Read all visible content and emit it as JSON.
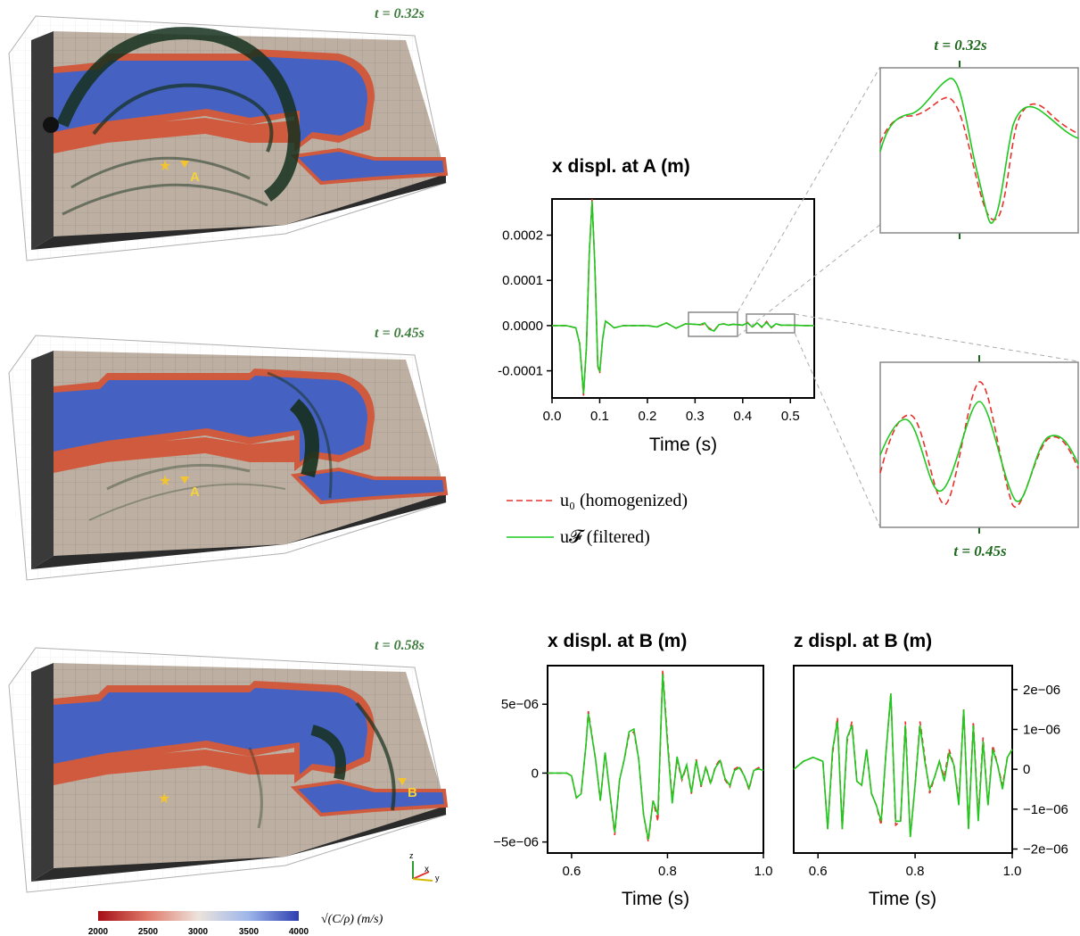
{
  "snapshots": [
    {
      "time_label": "t = 0.32s",
      "receiver": "A"
    },
    {
      "time_label": "t = 0.45s",
      "receiver": "A"
    },
    {
      "time_label": "t = 0.58s",
      "receiver": "B"
    }
  ],
  "colorbar": {
    "ticks": [
      "2000",
      "2500",
      "3000",
      "3500",
      "4000"
    ],
    "label": "√(C/ρ) (m/s)",
    "colors": [
      "#a50f15",
      "#e07b6b",
      "#ece3dc",
      "#9db6ea",
      "#2d3fb0"
    ]
  },
  "axes_triad": {
    "z": "z",
    "x": "x",
    "y": "y"
  },
  "legend": {
    "homogenized": "u₀ (homogenized)",
    "filtered": "u𝓕 (filtered)",
    "homogenized_color": "#e8312b",
    "filtered_color": "#1ec81e"
  },
  "zoom_labels": {
    "top": "t = 0.32s",
    "bottom": "t = 0.45s"
  },
  "chart_data": [
    {
      "type": "line",
      "title": "x displ. at A (m)",
      "xlabel": "Time (s)",
      "ylabel": "",
      "xlim": [
        0,
        0.55
      ],
      "ylim": [
        -0.00016,
        0.00028
      ],
      "xticks": [
        "0.0",
        "0.1",
        "0.2",
        "0.3",
        "0.4",
        "0.5"
      ],
      "xtick_values": [
        0,
        0.1,
        0.2,
        0.3,
        0.4,
        0.5
      ],
      "yticks": [
        "0.0002",
        "0.0001",
        "0.0000",
        "-0.0001"
      ],
      "ytick_values": [
        0.0002,
        0.0001,
        0,
        -0.0001
      ],
      "ytick_side": "left",
      "series": [
        {
          "x": [
            0,
            0.03,
            0.05,
            0.058,
            0.066,
            0.072,
            0.078,
            0.084,
            0.09,
            0.096,
            0.1,
            0.106,
            0.112,
            0.12,
            0.13,
            0.15,
            0.18,
            0.2,
            0.22,
            0.24,
            0.26,
            0.28,
            0.3,
            0.31,
            0.32,
            0.33,
            0.34,
            0.35,
            0.36,
            0.37,
            0.38,
            0.4,
            0.41,
            0.42,
            0.43,
            0.44,
            0.45,
            0.46,
            0.47,
            0.48,
            0.5,
            0.53,
            0.55
          ],
          "y": [
            0,
            0,
            -5e-06,
            -4e-05,
            -0.000155,
            -5e-05,
            0.00016,
            0.00028,
            0.00013,
            -9e-05,
            -0.000105,
            -3e-05,
            1e-05,
            4e-06,
            -5e-06,
            0,
            0,
            0,
            -3e-06,
            6e-06,
            -6e-06,
            4e-06,
            3e-06,
            2e-06,
            3e-06,
            -6e-06,
            -1.1e-05,
            2e-06,
            4e-06,
            1e-06,
            3e-06,
            1e-06,
            7e-06,
            -4e-06,
            7e-06,
            -4e-06,
            9e-06,
            -5e-06,
            4e-06,
            1e-06,
            1e-06,
            0,
            0
          ]
        },
        {
          "x": [
            0,
            0.03,
            0.05,
            0.058,
            0.066,
            0.072,
            0.078,
            0.084,
            0.09,
            0.096,
            0.1,
            0.106,
            0.112,
            0.12,
            0.13,
            0.15,
            0.18,
            0.2,
            0.22,
            0.24,
            0.26,
            0.28,
            0.3,
            0.31,
            0.32,
            0.33,
            0.34,
            0.35,
            0.36,
            0.37,
            0.38,
            0.4,
            0.41,
            0.42,
            0.43,
            0.44,
            0.45,
            0.46,
            0.47,
            0.48,
            0.5,
            0.53,
            0.55
          ],
          "y": [
            0,
            0,
            -5e-06,
            -4e-05,
            -0.00015,
            -5e-05,
            0.000155,
            0.000275,
            0.000128,
            -8.8e-05,
            -0.000102,
            -3e-05,
            1e-05,
            4e-06,
            -5e-06,
            0,
            0,
            0,
            -3e-06,
            6e-06,
            -6e-06,
            4e-06,
            3e-06,
            2e-06,
            6e-06,
            -8e-06,
            -1.2e-05,
            2e-06,
            4e-06,
            1e-06,
            3e-06,
            1e-06,
            6e-06,
            -3e-06,
            6e-06,
            -3e-06,
            7e-06,
            -4e-06,
            4e-06,
            1e-06,
            1e-06,
            0,
            0
          ]
        }
      ]
    },
    {
      "type": "line",
      "title": "x displ. at B (m)",
      "xlabel": "Time (s)",
      "ylabel": "",
      "xlim": [
        0.55,
        1.0
      ],
      "ylim": [
        -5.8e-06,
        7.8e-06
      ],
      "xticks": [
        "0.6",
        "0.8",
        "1.0"
      ],
      "xtick_values": [
        0.6,
        0.8,
        1.0
      ],
      "yticks": [
        "5e−06",
        "0",
        "−5e−06"
      ],
      "ytick_values": [
        5e-06,
        0,
        -5e-06
      ],
      "ytick_side": "left",
      "series": [
        {
          "x": [
            0.55,
            0.59,
            0.6,
            0.61,
            0.62,
            0.63,
            0.635,
            0.65,
            0.66,
            0.67,
            0.68,
            0.69,
            0.7,
            0.71,
            0.72,
            0.73,
            0.74,
            0.75,
            0.76,
            0.77,
            0.78,
            0.79,
            0.8,
            0.81,
            0.82,
            0.83,
            0.84,
            0.85,
            0.86,
            0.87,
            0.88,
            0.89,
            0.9,
            0.91,
            0.92,
            0.93,
            0.94,
            0.95,
            0.96,
            0.97,
            0.98,
            0.99,
            1.0
          ],
          "y": [
            0,
            0,
            -2e-07,
            -1.8e-06,
            -1.5e-06,
            2e-06,
            4.5e-06,
            1e-06,
            -2e-06,
            1.5e-06,
            -1.5e-06,
            -4.5e-06,
            -5e-07,
            1e-06,
            2.8e-06,
            3e-06,
            1e-06,
            -3e-06,
            -5e-06,
            -2e-06,
            -3.5e-06,
            7.5e-06,
            2.5e-06,
            -2e-06,
            1e-06,
            -5e-07,
            5e-07,
            -1.5e-06,
            1e-06,
            -1e-06,
            5e-07,
            -8e-07,
            5e-07,
            1e-06,
            -5e-07,
            -1e-06,
            3e-07,
            5e-07,
            -2e-07,
            -1.2e-06,
            2e-07,
            4e-07,
            2e-07
          ]
        },
        {
          "x": [
            0.55,
            0.59,
            0.6,
            0.61,
            0.62,
            0.63,
            0.635,
            0.65,
            0.66,
            0.67,
            0.68,
            0.69,
            0.7,
            0.71,
            0.72,
            0.73,
            0.74,
            0.75,
            0.76,
            0.77,
            0.78,
            0.79,
            0.8,
            0.81,
            0.82,
            0.83,
            0.84,
            0.85,
            0.86,
            0.87,
            0.88,
            0.89,
            0.9,
            0.91,
            0.92,
            0.93,
            0.94,
            0.95,
            0.96,
            0.97,
            0.98,
            0.99,
            1.0
          ],
          "y": [
            0,
            0,
            -2e-07,
            -1.8e-06,
            -1.5e-06,
            2e-06,
            4.3e-06,
            1e-06,
            -2e-06,
            1.5e-06,
            -1.5e-06,
            -4.3e-06,
            -5e-07,
            1e-06,
            3e-06,
            3.2e-06,
            1e-06,
            -3e-06,
            -4.8e-06,
            -2e-06,
            -3e-06,
            7.2e-06,
            2.2e-06,
            -2.2e-06,
            1.2e-06,
            -4e-07,
            6e-07,
            -1.4e-06,
            9e-07,
            -9e-07,
            4e-07,
            -7e-07,
            4e-07,
            9e-07,
            -4e-07,
            -9e-07,
            2e-07,
            4e-07,
            -2e-07,
            -1.1e-06,
            2e-07,
            3e-07,
            2e-07
          ]
        }
      ]
    },
    {
      "type": "line",
      "title": "z displ. at B (m)",
      "xlabel": "Time (s)",
      "ylabel": "",
      "xlim": [
        0.55,
        1.0
      ],
      "ylim": [
        -2.1e-06,
        2.6e-06
      ],
      "xticks": [
        "0.6",
        "0.8",
        "1.0"
      ],
      "xtick_values": [
        0.6,
        0.8,
        1.0
      ],
      "yticks": [
        "2e−06",
        "1e−06",
        "0",
        "−1e−06",
        "−2e−06"
      ],
      "ytick_values": [
        2e-06,
        1e-06,
        0,
        -1e-06,
        -2e-06
      ],
      "ytick_side": "right",
      "series": [
        {
          "x": [
            0.55,
            0.57,
            0.59,
            0.61,
            0.62,
            0.63,
            0.64,
            0.65,
            0.66,
            0.67,
            0.68,
            0.69,
            0.7,
            0.71,
            0.72,
            0.73,
            0.74,
            0.75,
            0.76,
            0.77,
            0.78,
            0.79,
            0.8,
            0.81,
            0.82,
            0.83,
            0.84,
            0.85,
            0.86,
            0.87,
            0.88,
            0.89,
            0.9,
            0.91,
            0.92,
            0.93,
            0.94,
            0.95,
            0.96,
            0.97,
            0.98,
            0.99,
            1.0
          ],
          "y": [
            0,
            2e-07,
            3e-07,
            2e-07,
            -1.5e-06,
            4e-07,
            1.3e-06,
            -1.5e-06,
            7e-07,
            1.2e-06,
            -3e-07,
            -4e-07,
            5e-07,
            -6e-07,
            -9e-07,
            -1.4e-06,
            4e-07,
            1.9e-06,
            -1.4e-06,
            -1.3e-06,
            1.2e-06,
            -1.7e-06,
            -4e-07,
            1.2e-06,
            3e-07,
            -6e-07,
            -2e-07,
            2e-07,
            -2e-07,
            5e-07,
            1e-07,
            -8e-07,
            1.5e-06,
            -1.5e-06,
            1.2e-06,
            -1.2e-06,
            8e-07,
            -9e-07,
            6e-07,
            1e-07,
            -4e-07,
            3e-07,
            5e-07
          ]
        },
        {
          "x": [
            0.55,
            0.57,
            0.59,
            0.61,
            0.62,
            0.63,
            0.64,
            0.65,
            0.66,
            0.67,
            0.68,
            0.69,
            0.7,
            0.71,
            0.72,
            0.73,
            0.74,
            0.75,
            0.76,
            0.77,
            0.78,
            0.79,
            0.8,
            0.81,
            0.82,
            0.83,
            0.84,
            0.85,
            0.86,
            0.87,
            0.88,
            0.89,
            0.9,
            0.91,
            0.92,
            0.93,
            0.94,
            0.95,
            0.96,
            0.97,
            0.98,
            0.99,
            1.0
          ],
          "y": [
            0,
            2e-07,
            3e-07,
            2e-07,
            -1.5e-06,
            5e-07,
            1.2e-06,
            -1.5e-06,
            8e-07,
            1.1e-06,
            -3e-07,
            -4e-07,
            5e-07,
            -6e-07,
            -9e-07,
            -1.3e-06,
            4e-07,
            1.9e-06,
            -1.3e-06,
            -1.3e-06,
            1.1e-06,
            -1.7e-06,
            -4e-07,
            1.1e-06,
            2e-07,
            -5e-07,
            -2e-07,
            2e-07,
            -3e-07,
            4e-07,
            1e-07,
            -9e-07,
            1.5e-06,
            -1.5e-06,
            1.1e-06,
            -1.3e-06,
            7e-07,
            -9e-07,
            5e-07,
            1e-07,
            -5e-07,
            3e-07,
            5e-07
          ]
        }
      ]
    }
  ]
}
